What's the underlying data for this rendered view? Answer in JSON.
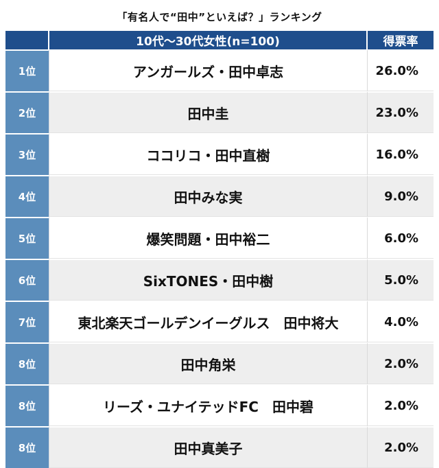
{
  "title": "「有名人で“田中”といえば？」ランキング",
  "header": {
    "rank": "",
    "name": "10代〜30代女性(n=100)",
    "pct": "得票率"
  },
  "chart_data": {
    "type": "table",
    "title": "「有名人で“田中”といえば？」ランキング",
    "columns": [
      "10代〜30代女性(n=100)",
      "得票率"
    ],
    "rows": [
      {
        "rank": "1位",
        "name": "アンガールズ・田中卓志",
        "pct": "26.0%",
        "value": 26.0
      },
      {
        "rank": "2位",
        "name": "田中圭",
        "pct": "23.0%",
        "value": 23.0
      },
      {
        "rank": "3位",
        "name": "ココリコ・田中直樹",
        "pct": "16.0%",
        "value": 16.0
      },
      {
        "rank": "4位",
        "name": "田中みな実",
        "pct": "9.0%",
        "value": 9.0
      },
      {
        "rank": "5位",
        "name": "爆笑問題・田中裕二",
        "pct": "6.0%",
        "value": 6.0
      },
      {
        "rank": "6位",
        "name": "SixTONES・田中樹",
        "pct": "5.0%",
        "value": 5.0
      },
      {
        "rank": "7位",
        "name": "東北楽天ゴールデンイーグルス　田中将大",
        "pct": "4.0%",
        "value": 4.0
      },
      {
        "rank": "8位",
        "name": "田中角栄",
        "pct": "2.0%",
        "value": 2.0
      },
      {
        "rank": "8位",
        "name": "リーズ・ユナイテッドFC　田中碧",
        "pct": "2.0%",
        "value": 2.0
      },
      {
        "rank": "8位",
        "name": "田中真美子",
        "pct": "2.0%",
        "value": 2.0
      }
    ]
  },
  "colors": {
    "header_bg": "#1f4e8c",
    "rank_bg": "#5b8dbb",
    "row_alt_bg": "#eeeeee"
  }
}
